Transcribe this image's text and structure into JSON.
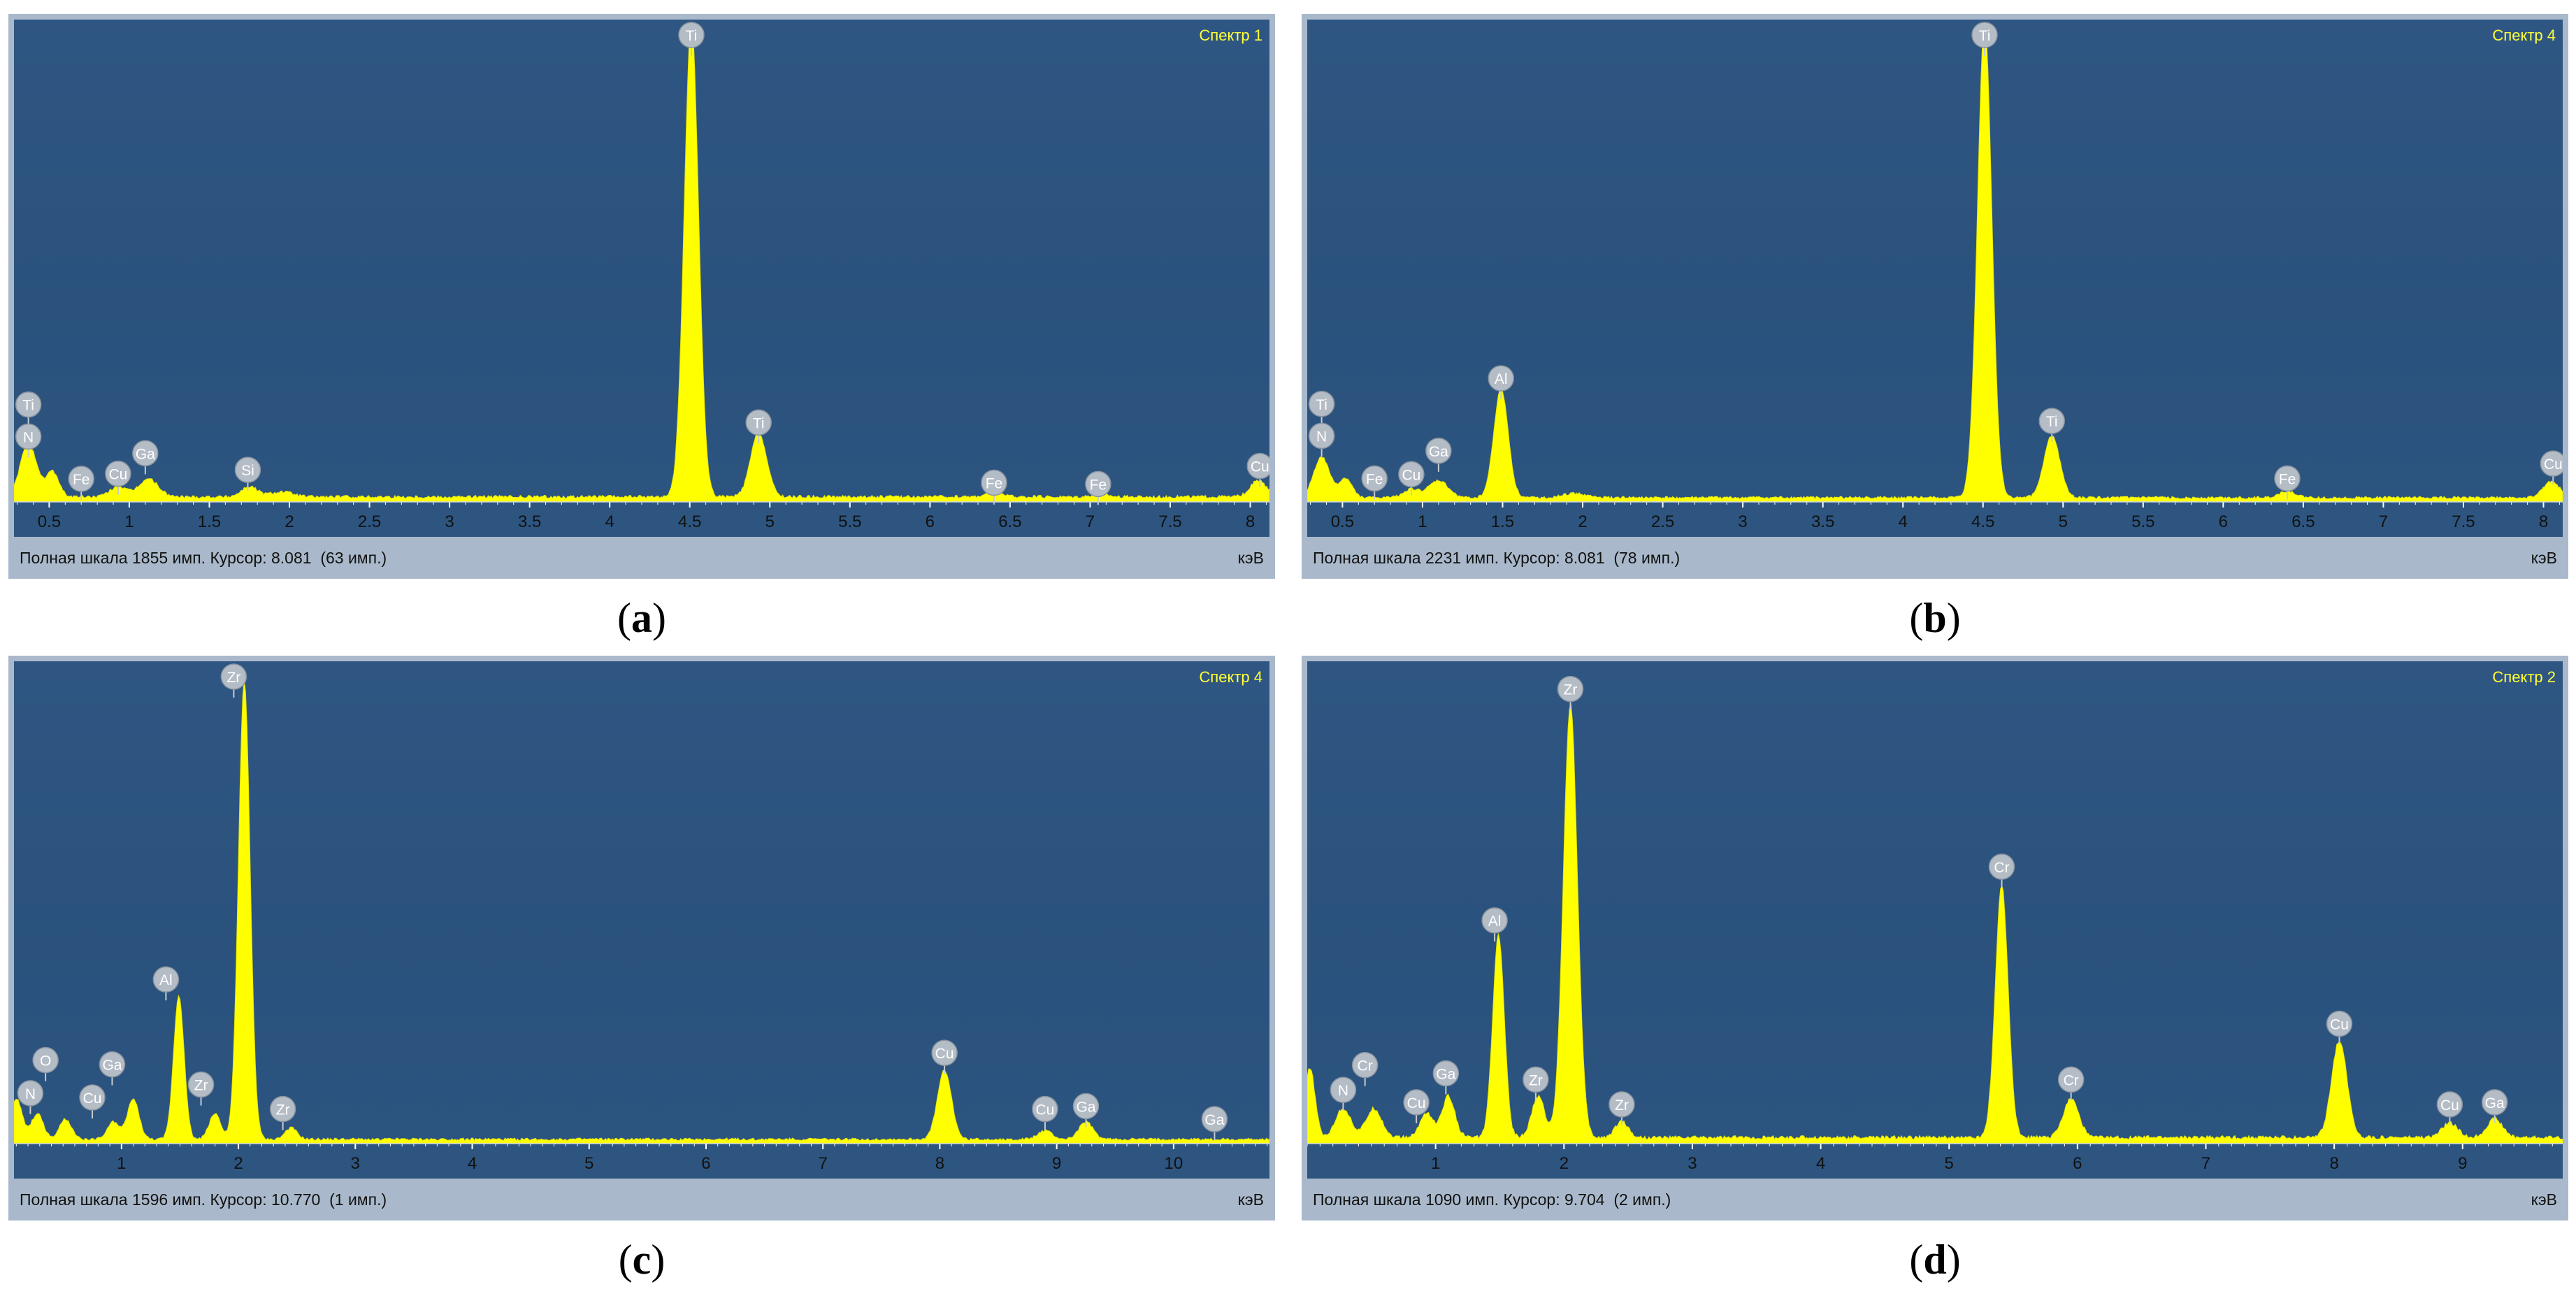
{
  "panels": [
    {
      "caption_open": "(",
      "caption_letter": "a",
      "caption_close": ")",
      "spectrum_label": "Спектр 1",
      "status_text": "Полная шкала 1855 имп. Курсор: 8.081  (63 имп.)",
      "unit": "кэВ"
    },
    {
      "caption_open": "(",
      "caption_letter": "b",
      "caption_close": ")",
      "spectrum_label": "Спектр 4",
      "status_text": "Полная шкала 2231 имп. Курсор: 8.081  (78 имп.)",
      "unit": "кэВ"
    },
    {
      "caption_open": "(",
      "caption_letter": "c",
      "caption_close": ")",
      "spectrum_label": "Спектр 4",
      "status_text": "Полная шкала 1596 имп. Курсор: 10.770  (1 имп.)",
      "unit": "кэВ"
    },
    {
      "caption_open": "(",
      "caption_letter": "d",
      "caption_close": ")",
      "spectrum_label": "Спектр 2",
      "status_text": "Полная шкала 1090 имп. Курсор: 9.704  (2 имп.)",
      "unit": "кэВ"
    }
  ],
  "chart_data": [
    {
      "type": "area",
      "title": "Спектр 1",
      "xlabel": "кэВ",
      "xlim": [
        0.28,
        8.12
      ],
      "ylim": [
        0,
        1855
      ],
      "full_scale_counts": 1855,
      "xticks": [
        "0.5",
        "1",
        "1.5",
        "2",
        "2.5",
        "3",
        "3.5",
        "4",
        "4.5",
        "5",
        "5.5",
        "6",
        "6.5",
        "7",
        "7.5",
        "8"
      ],
      "baseline": 20,
      "peaks": [
        {
          "x": 0.37,
          "y": 210,
          "w": 0.05
        },
        {
          "x": 0.52,
          "y": 100,
          "w": 0.04
        },
        {
          "x": 0.93,
          "y": 40,
          "w": 0.05
        },
        {
          "x": 1.12,
          "y": 70,
          "w": 0.06
        },
        {
          "x": 1.75,
          "y": 40,
          "w": 0.05
        },
        {
          "x": 1.95,
          "y": 20,
          "w": 0.07
        },
        {
          "x": 4.51,
          "y": 1855,
          "w": 0.045
        },
        {
          "x": 4.93,
          "y": 250,
          "w": 0.05
        },
        {
          "x": 6.4,
          "y": 20,
          "w": 0.05
        },
        {
          "x": 7.06,
          "y": 12,
          "w": 0.05
        },
        {
          "x": 8.05,
          "y": 63,
          "w": 0.05
        }
      ],
      "annotations": [
        {
          "text": "Ti",
          "x": 0.37,
          "y": 380
        },
        {
          "text": "N",
          "x": 0.37,
          "y": 255
        },
        {
          "text": "Fe",
          "x": 0.7,
          "y": 90
        },
        {
          "text": "Cu",
          "x": 0.93,
          "y": 110
        },
        {
          "text": "Ga",
          "x": 1.1,
          "y": 190
        },
        {
          "text": "Si",
          "x": 1.74,
          "y": 125
        },
        {
          "text": "Ti",
          "x": 4.51,
          "y": 1870
        },
        {
          "text": "Ti",
          "x": 4.93,
          "y": 310
        },
        {
          "text": "Fe",
          "x": 6.4,
          "y": 75
        },
        {
          "text": "Fe",
          "x": 7.05,
          "y": 70
        },
        {
          "text": "Cu",
          "x": 8.06,
          "y": 140
        }
      ]
    },
    {
      "type": "area",
      "title": "Спектр 4",
      "xlabel": "кэВ",
      "xlim": [
        0.28,
        8.12
      ],
      "ylim": [
        0,
        2231
      ],
      "full_scale_counts": 2231,
      "xticks": [
        "0.5",
        "1",
        "1.5",
        "2",
        "2.5",
        "3",
        "3.5",
        "4",
        "4.5",
        "5",
        "5.5",
        "6",
        "6.5",
        "7",
        "7.5",
        "8"
      ],
      "baseline": 20,
      "peaks": [
        {
          "x": 0.37,
          "y": 190,
          "w": 0.05
        },
        {
          "x": 0.52,
          "y": 90,
          "w": 0.04
        },
        {
          "x": 0.93,
          "y": 40,
          "w": 0.05
        },
        {
          "x": 1.1,
          "y": 80,
          "w": 0.06
        },
        {
          "x": 1.49,
          "y": 510,
          "w": 0.045
        },
        {
          "x": 1.95,
          "y": 20,
          "w": 0.07
        },
        {
          "x": 4.51,
          "y": 2231,
          "w": 0.045
        },
        {
          "x": 4.93,
          "y": 290,
          "w": 0.05
        },
        {
          "x": 6.4,
          "y": 30,
          "w": 0.05
        },
        {
          "x": 8.05,
          "y": 78,
          "w": 0.05
        }
      ],
      "annotations": [
        {
          "text": "Ti",
          "x": 0.37,
          "y": 460
        },
        {
          "text": "N",
          "x": 0.37,
          "y": 310
        },
        {
          "text": "Fe",
          "x": 0.7,
          "y": 110
        },
        {
          "text": "Cu",
          "x": 0.93,
          "y": 130
        },
        {
          "text": "Ga",
          "x": 1.1,
          "y": 240
        },
        {
          "text": "Al",
          "x": 1.49,
          "y": 580
        },
        {
          "text": "Ti",
          "x": 4.51,
          "y": 2250
        },
        {
          "text": "Ti",
          "x": 4.93,
          "y": 380
        },
        {
          "text": "Fe",
          "x": 6.4,
          "y": 110
        },
        {
          "text": "Cu",
          "x": 8.06,
          "y": 180
        }
      ]
    },
    {
      "type": "area",
      "title": "Спектр 4",
      "xlabel": "кэВ",
      "xlim": [
        0.08,
        10.82
      ],
      "ylim": [
        0,
        1650
      ],
      "full_scale_counts": 1596,
      "xticks": [
        "1",
        "2",
        "3",
        "4",
        "5",
        "6",
        "7",
        "8",
        "9",
        "10"
      ],
      "baseline": 15,
      "peaks": [
        {
          "x": 0.1,
          "y": 140,
          "w": 0.05
        },
        {
          "x": 0.28,
          "y": 90,
          "w": 0.05
        },
        {
          "x": 0.52,
          "y": 70,
          "w": 0.05
        },
        {
          "x": 0.93,
          "y": 60,
          "w": 0.05
        },
        {
          "x": 1.1,
          "y": 140,
          "w": 0.05
        },
        {
          "x": 1.49,
          "y": 500,
          "w": 0.045
        },
        {
          "x": 1.8,
          "y": 90,
          "w": 0.05
        },
        {
          "x": 2.05,
          "y": 1590,
          "w": 0.05
        },
        {
          "x": 2.45,
          "y": 40,
          "w": 0.05
        },
        {
          "x": 8.04,
          "y": 240,
          "w": 0.06
        },
        {
          "x": 8.9,
          "y": 30,
          "w": 0.06
        },
        {
          "x": 9.25,
          "y": 60,
          "w": 0.06
        }
      ],
      "annotations": [
        {
          "text": "N",
          "x": 0.22,
          "y": 175
        },
        {
          "text": "O",
          "x": 0.35,
          "y": 290
        },
        {
          "text": "Cu",
          "x": 0.75,
          "y": 160
        },
        {
          "text": "Ga",
          "x": 0.92,
          "y": 275
        },
        {
          "text": "Al",
          "x": 1.38,
          "y": 570
        },
        {
          "text": "Zr",
          "x": 1.68,
          "y": 205
        },
        {
          "text": "Zr",
          "x": 1.96,
          "y": 1650
        },
        {
          "text": "Zr",
          "x": 2.38,
          "y": 120
        },
        {
          "text": "Cu",
          "x": 8.04,
          "y": 315
        },
        {
          "text": "Cu",
          "x": 8.9,
          "y": 120
        },
        {
          "text": "Ga",
          "x": 9.25,
          "y": 130
        },
        {
          "text": "Ga",
          "x": 10.35,
          "y": 85
        }
      ]
    },
    {
      "type": "area",
      "title": "Спектр 2",
      "xlabel": "кэВ",
      "xlim": [
        0.0,
        9.78
      ],
      "ylim": [
        0,
        1150
      ],
      "full_scale_counts": 1090,
      "xticks": [
        "1",
        "2",
        "3",
        "4",
        "5",
        "6",
        "7",
        "8",
        "9"
      ],
      "baseline": 15,
      "peaks": [
        {
          "x": 0.02,
          "y": 170,
          "w": 0.04
        },
        {
          "x": 0.28,
          "y": 70,
          "w": 0.06
        },
        {
          "x": 0.52,
          "y": 70,
          "w": 0.06
        },
        {
          "x": 0.93,
          "y": 60,
          "w": 0.05
        },
        {
          "x": 1.1,
          "y": 100,
          "w": 0.05
        },
        {
          "x": 1.49,
          "y": 490,
          "w": 0.045
        },
        {
          "x": 1.8,
          "y": 100,
          "w": 0.05
        },
        {
          "x": 2.05,
          "y": 1050,
          "w": 0.055
        },
        {
          "x": 2.45,
          "y": 40,
          "w": 0.05
        },
        {
          "x": 5.41,
          "y": 610,
          "w": 0.05
        },
        {
          "x": 5.95,
          "y": 95,
          "w": 0.06
        },
        {
          "x": 8.04,
          "y": 235,
          "w": 0.06
        },
        {
          "x": 8.9,
          "y": 35,
          "w": 0.06
        },
        {
          "x": 9.25,
          "y": 45,
          "w": 0.06
        }
      ],
      "annotations": [
        {
          "text": "N",
          "x": 0.28,
          "y": 130
        },
        {
          "text": "Cr",
          "x": 0.45,
          "y": 190
        },
        {
          "text": "Cu",
          "x": 0.85,
          "y": 100
        },
        {
          "text": "Ga",
          "x": 1.08,
          "y": 170
        },
        {
          "text": "Al",
          "x": 1.46,
          "y": 540
        },
        {
          "text": "Zr",
          "x": 1.78,
          "y": 155
        },
        {
          "text": "Zr",
          "x": 2.05,
          "y": 1100
        },
        {
          "text": "Zr",
          "x": 2.45,
          "y": 95
        },
        {
          "text": "Cr",
          "x": 5.41,
          "y": 670
        },
        {
          "text": "Cr",
          "x": 5.95,
          "y": 155
        },
        {
          "text": "Cu",
          "x": 8.04,
          "y": 290
        },
        {
          "text": "Cu",
          "x": 8.9,
          "y": 95
        },
        {
          "text": "Ga",
          "x": 9.25,
          "y": 100
        }
      ]
    }
  ]
}
